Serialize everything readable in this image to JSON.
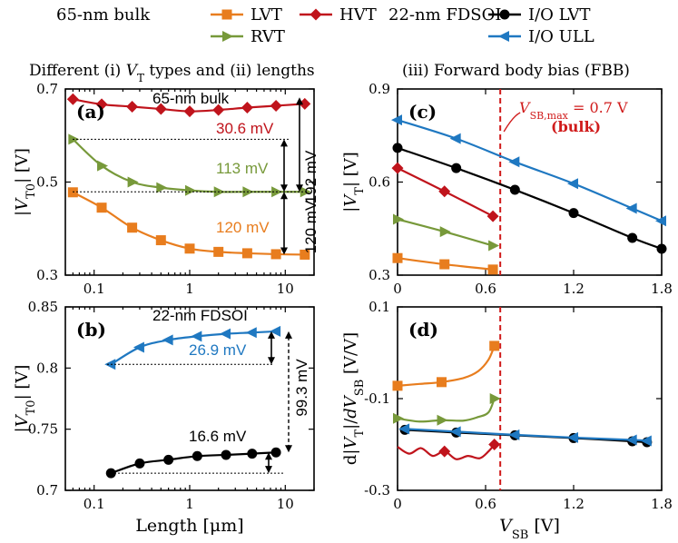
{
  "colors": {
    "lvt": "#e87d1e",
    "hvt": "#c0141c",
    "rvt": "#77993a",
    "io_lvt": "#000000",
    "io_ull": "#1f78c1",
    "vline": "#d01b1b"
  },
  "legend": {
    "bulk_label": "65-nm bulk",
    "fdsoi_label": "22-nm FDSOI",
    "items": [
      {
        "name": "LVT",
        "key": "lvt",
        "marker": "square"
      },
      {
        "name": "HVT",
        "key": "hvt",
        "marker": "diamond"
      },
      {
        "name": "RVT",
        "key": "rvt",
        "marker": "tri-right"
      },
      {
        "name": "I/O LVT",
        "key": "io_lvt",
        "marker": "circle"
      },
      {
        "name": "I/O ULL",
        "key": "io_ull",
        "marker": "tri-left"
      }
    ]
  },
  "headers": {
    "left": "Different (i) V_T types and (ii) lengths",
    "right": "(iii) Forward body bias (FBB)"
  },
  "chart_data": [
    {
      "id": "a",
      "panel_label": "(a)",
      "type": "line",
      "inset_title": "65-nm bulk",
      "xscale": "log",
      "xlim": [
        0.05,
        20
      ],
      "ylim": [
        0.3,
        0.7
      ],
      "yticks": [
        "0.3",
        "0.5",
        "0.7"
      ],
      "xticks": [
        "0.1",
        "1",
        "10"
      ],
      "ylabel": "|V_T0| [V]",
      "series": [
        {
          "name": "HVT",
          "key": "hvt",
          "marker": "diamond",
          "x": [
            0.06,
            0.12,
            0.25,
            0.5,
            1.0,
            2.0,
            4.0,
            8.0,
            16.0
          ],
          "y": [
            0.678,
            0.667,
            0.662,
            0.657,
            0.652,
            0.655,
            0.66,
            0.664,
            0.668
          ]
        },
        {
          "name": "RVT",
          "key": "rvt",
          "marker": "tri-right",
          "x": [
            0.06,
            0.12,
            0.25,
            0.5,
            1.0,
            2.0,
            4.0,
            8.0,
            16.0
          ],
          "y": [
            0.592,
            0.535,
            0.5,
            0.488,
            0.482,
            0.479,
            0.479,
            0.479,
            0.479
          ]
        },
        {
          "name": "LVT",
          "key": "lvt",
          "marker": "square",
          "x": [
            0.06,
            0.12,
            0.25,
            0.5,
            1.0,
            2.0,
            4.0,
            8.0,
            16.0
          ],
          "y": [
            0.478,
            0.445,
            0.402,
            0.375,
            0.357,
            0.35,
            0.347,
            0.345,
            0.344
          ]
        }
      ],
      "annotations": [
        "30.6 mV",
        "113 mV",
        "120 mV",
        "192 mV",
        "120 mV"
      ]
    },
    {
      "id": "b",
      "panel_label": "(b)",
      "type": "line",
      "inset_title": "22-nm FDSOI",
      "xscale": "log",
      "xlim": [
        0.05,
        20
      ],
      "ylim": [
        0.7,
        0.85
      ],
      "yticks": [
        "0.7",
        "0.75",
        "0.8",
        "0.85"
      ],
      "xticks": [
        "0.1",
        "1",
        "10"
      ],
      "ylabel": "|V_T0| [V]",
      "xlabel": "Length [μm]",
      "series": [
        {
          "name": "I/O ULL",
          "key": "io_ull",
          "marker": "tri-left",
          "x": [
            0.15,
            0.3,
            0.6,
            1.2,
            2.4,
            4.5,
            8.0
          ],
          "y": [
            0.803,
            0.817,
            0.823,
            0.826,
            0.828,
            0.829,
            0.83
          ]
        },
        {
          "name": "I/O LVT",
          "key": "io_lvt",
          "marker": "circle",
          "x": [
            0.15,
            0.3,
            0.6,
            1.2,
            2.4,
            4.5,
            8.0
          ],
          "y": [
            0.714,
            0.722,
            0.725,
            0.728,
            0.729,
            0.73,
            0.731
          ]
        }
      ],
      "annotations": [
        "26.9 mV",
        "16.6 mV",
        "99.3 mV"
      ]
    },
    {
      "id": "c",
      "panel_label": "(c)",
      "type": "line",
      "xlim": [
        0,
        1.8
      ],
      "ylim": [
        0.3,
        0.9
      ],
      "yticks": [
        "0.3",
        "0.6",
        "0.9"
      ],
      "xticks": [
        "0",
        "0.6",
        "1.2",
        "1.8"
      ],
      "ylabel": "|V_T| [V]",
      "series": [
        {
          "name": "I/O ULL",
          "key": "io_ull",
          "marker": "tri-left",
          "x": [
            0,
            0.4,
            0.8,
            1.2,
            1.6,
            1.8
          ],
          "y": [
            0.8,
            0.74,
            0.665,
            0.595,
            0.515,
            0.475
          ]
        },
        {
          "name": "I/O LVT",
          "key": "io_lvt",
          "marker": "circle",
          "x": [
            0,
            0.4,
            0.8,
            1.2,
            1.6,
            1.8
          ],
          "y": [
            0.71,
            0.645,
            0.575,
            0.5,
            0.42,
            0.385
          ]
        },
        {
          "name": "HVT",
          "key": "hvt",
          "marker": "diamond",
          "x": [
            0,
            0.32,
            0.65
          ],
          "y": [
            0.645,
            0.57,
            0.49
          ]
        },
        {
          "name": "RVT",
          "key": "rvt",
          "marker": "tri-right",
          "x": [
            0,
            0.32,
            0.65
          ],
          "y": [
            0.48,
            0.44,
            0.395
          ]
        },
        {
          "name": "LVT",
          "key": "lvt",
          "marker": "square",
          "x": [
            0,
            0.32,
            0.65
          ],
          "y": [
            0.355,
            0.335,
            0.318
          ]
        }
      ],
      "vline": {
        "x": 0.7,
        "label": "V_SB,max = 0.7 V",
        "sublabel": "(bulk)"
      }
    },
    {
      "id": "d",
      "panel_label": "(d)",
      "type": "line",
      "xlim": [
        0,
        1.8
      ],
      "ylim": [
        -0.3,
        0.1
      ],
      "yticks": [
        "-0.3",
        "-0.1",
        "0.1"
      ],
      "xticks": [
        "0",
        "0.6",
        "1.2",
        "1.8"
      ],
      "ylabel": "d|V_T|/dV_SB [V/V]",
      "xlabel": "V_SB [V]",
      "series": [
        {
          "name": "LVT",
          "key": "lvt",
          "marker": "square",
          "x": [
            0,
            0.15,
            0.3,
            0.45,
            0.55,
            0.62,
            0.66
          ],
          "y": [
            -0.072,
            -0.068,
            -0.064,
            -0.055,
            -0.04,
            -0.015,
            0.015
          ]
        },
        {
          "name": "RVT",
          "key": "rvt",
          "marker": "tri-right",
          "x": [
            0,
            0.15,
            0.3,
            0.45,
            0.55,
            0.62,
            0.66
          ],
          "y": [
            -0.143,
            -0.15,
            -0.147,
            -0.148,
            -0.14,
            -0.13,
            -0.1
          ]
        },
        {
          "name": "I/O LVT",
          "key": "io_lvt",
          "marker": "circle",
          "x": [
            0.05,
            0.4,
            0.8,
            1.2,
            1.6,
            1.7
          ],
          "y": [
            -0.168,
            -0.174,
            -0.18,
            -0.186,
            -0.193,
            -0.195
          ]
        },
        {
          "name": "I/O ULL",
          "key": "io_ull",
          "marker": "tri-left",
          "x": [
            0.05,
            0.4,
            0.8,
            1.2,
            1.6,
            1.7
          ],
          "y": [
            -0.166,
            -0.172,
            -0.179,
            -0.185,
            -0.19,
            -0.192
          ]
        },
        {
          "name": "HVT",
          "key": "hvt",
          "marker": "diamond",
          "x": [
            0,
            0.08,
            0.16,
            0.24,
            0.32,
            0.4,
            0.48,
            0.56,
            0.62,
            0.66
          ],
          "y": [
            -0.205,
            -0.22,
            -0.208,
            -0.225,
            -0.215,
            -0.232,
            -0.225,
            -0.23,
            -0.215,
            -0.2
          ]
        }
      ],
      "vline": {
        "x": 0.7
      }
    }
  ]
}
